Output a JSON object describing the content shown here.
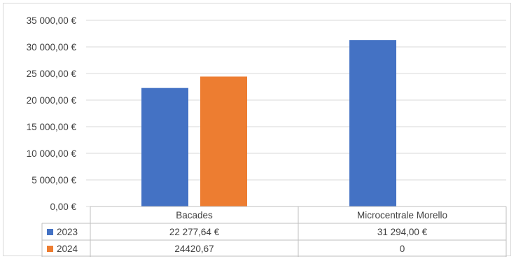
{
  "chart_data": {
    "type": "bar",
    "categories": [
      "Bacades",
      "Microcentrale Morello"
    ],
    "series": [
      {
        "name": "2023",
        "color": "#4472c4",
        "values": [
          22277.64,
          31294.0
        ],
        "labels": [
          "22 277,64 €",
          "31 294,00 €"
        ]
      },
      {
        "name": "2024",
        "color": "#ed7d31",
        "values": [
          24420.67,
          0
        ],
        "labels": [
          "24420,67",
          "0"
        ]
      }
    ],
    "ylim": [
      0,
      35000
    ],
    "yticks": [
      0,
      5000,
      10000,
      15000,
      20000,
      25000,
      30000,
      35000
    ],
    "ytick_labels": [
      "0,00 €",
      "5 000,00 €",
      "10 000,00 €",
      "15 000,00 €",
      "20 000,00 €",
      "25 000,00 €",
      "30 000,00 €",
      "35 000,00 €"
    ],
    "grid": true,
    "legend": "data-table",
    "title": "",
    "xlabel": "",
    "ylabel": ""
  }
}
